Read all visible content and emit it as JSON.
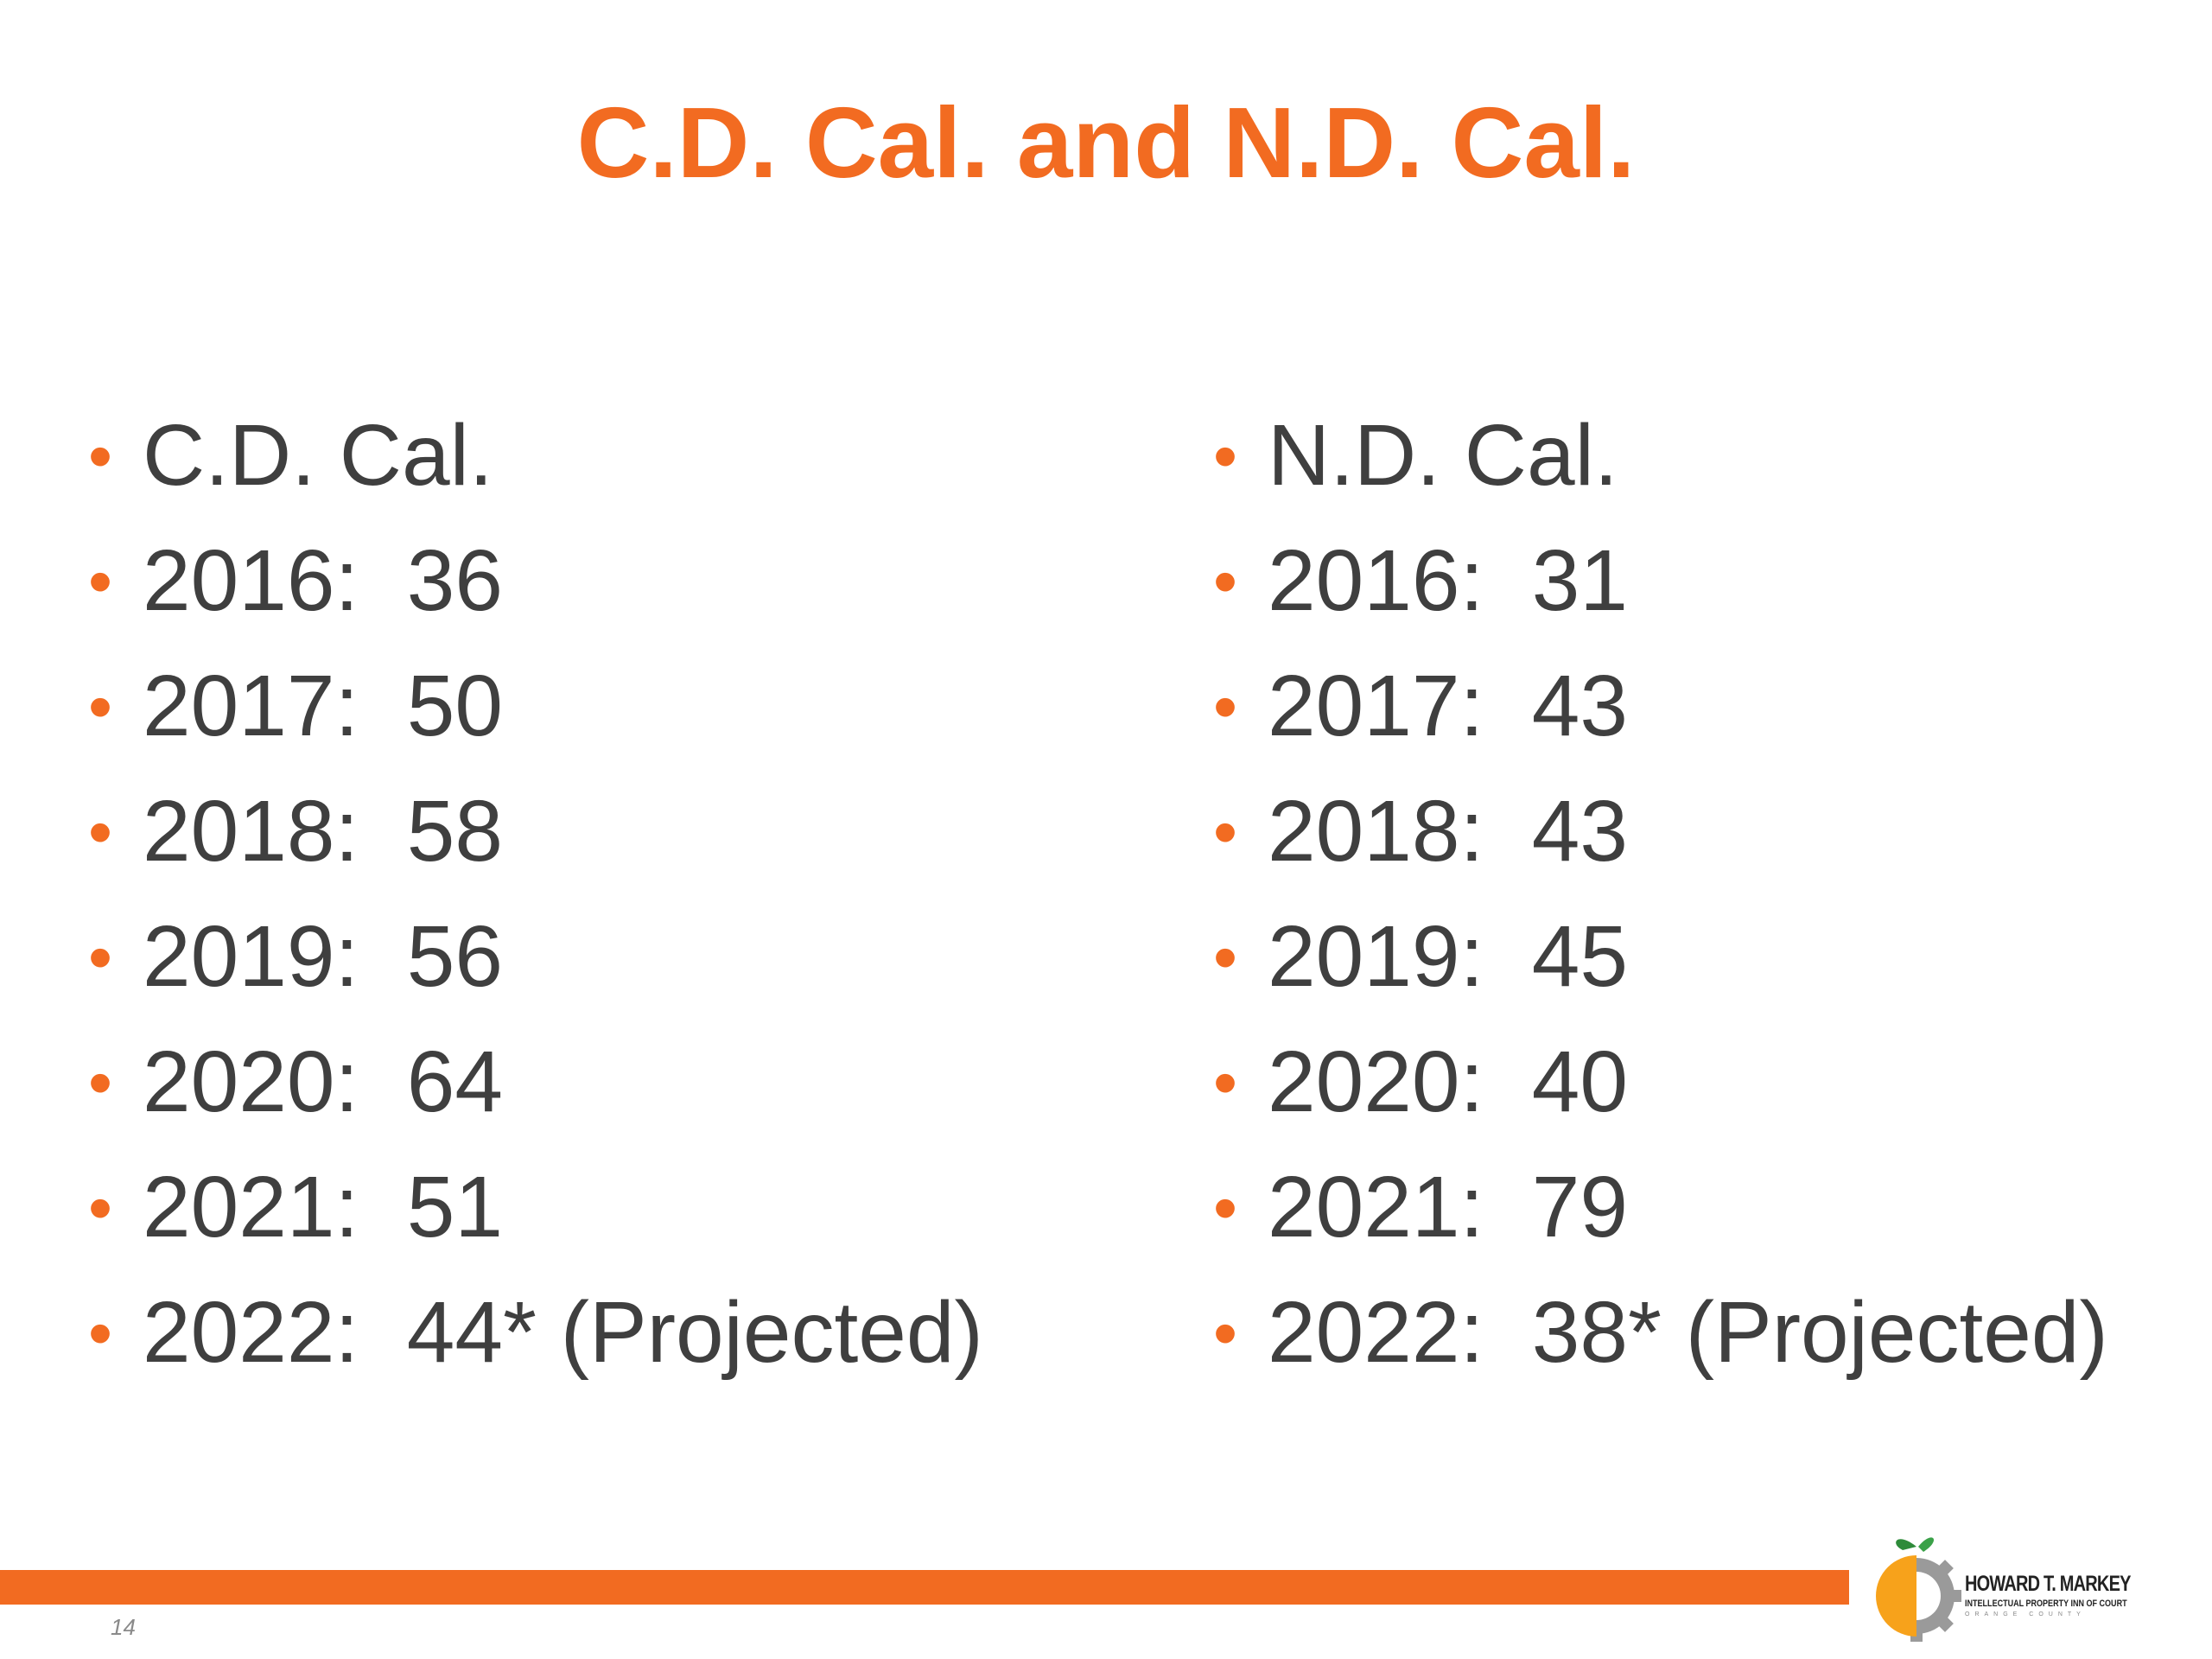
{
  "title": "C.D. Cal. and N.D. Cal.",
  "columns": [
    {
      "items": [
        "C.D. Cal.",
        "2016:  36",
        "2017:  50",
        "2018:  58",
        "2019:  56",
        "2020:  64",
        "2021:  51",
        "2022:  44* (Projected)"
      ]
    },
    {
      "items": [
        "N.D. Cal.",
        "2016:  31",
        "2017:  43",
        "2018:  43",
        "2019:  45",
        "2020:  40",
        "2021:  79",
        "2022:  38* (Projected)"
      ]
    }
  ],
  "footer": {
    "page_number": "14",
    "logo": {
      "name": "HOWARD T. MARKEY",
      "subtitle": "INTELLECTUAL PROPERTY INN OF COURT",
      "region": "ORANGE COUNTY"
    }
  }
}
